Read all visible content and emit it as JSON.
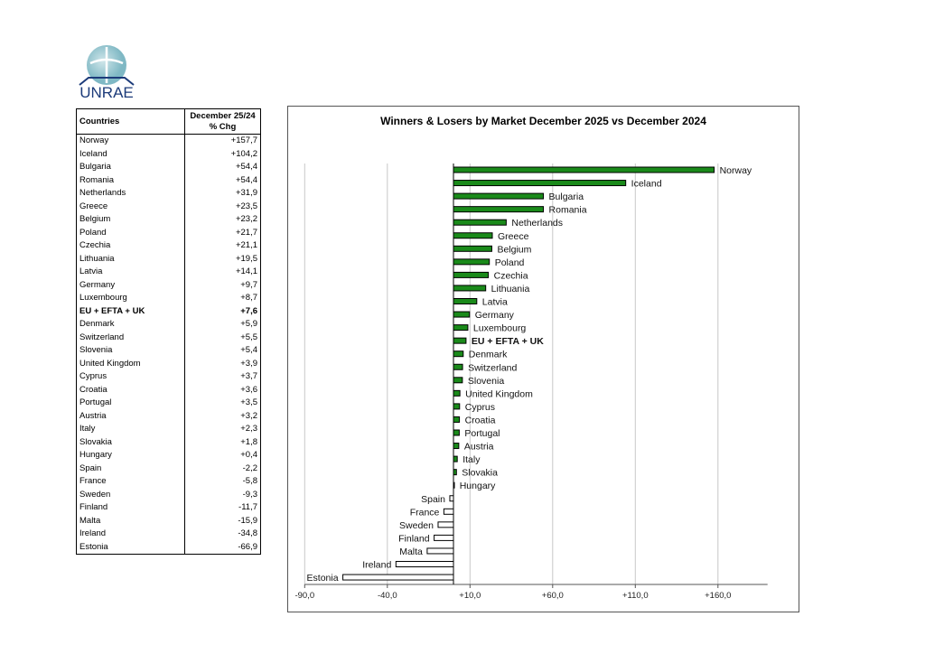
{
  "logo": {
    "text": "UNRAE"
  },
  "table": {
    "col1_header": "Countries",
    "col2_header_line1": "December 25/24",
    "col2_header_line2": "% Chg",
    "rows": [
      {
        "country": "Norway",
        "chg": "+157,7"
      },
      {
        "country": "Iceland",
        "chg": "+104,2"
      },
      {
        "country": "Bulgaria",
        "chg": "+54,4"
      },
      {
        "country": "Romania",
        "chg": "+54,4"
      },
      {
        "country": "Netherlands",
        "chg": "+31,9"
      },
      {
        "country": "Greece",
        "chg": "+23,5"
      },
      {
        "country": "Belgium",
        "chg": "+23,2"
      },
      {
        "country": "Poland",
        "chg": "+21,7"
      },
      {
        "country": "Czechia",
        "chg": "+21,1"
      },
      {
        "country": "Lithuania",
        "chg": "+19,5"
      },
      {
        "country": "Latvia",
        "chg": "+14,1"
      },
      {
        "country": "Germany",
        "chg": "+9,7"
      },
      {
        "country": "Luxembourg",
        "chg": "+8,7"
      },
      {
        "country": "EU + EFTA + UK",
        "chg": "+7,6",
        "bold": true
      },
      {
        "country": "Denmark",
        "chg": "+5,9"
      },
      {
        "country": "Switzerland",
        "chg": "+5,5"
      },
      {
        "country": "Slovenia",
        "chg": "+5,4"
      },
      {
        "country": "United Kingdom",
        "chg": "+3,9"
      },
      {
        "country": "Cyprus",
        "chg": "+3,7"
      },
      {
        "country": "Croatia",
        "chg": "+3,6"
      },
      {
        "country": "Portugal",
        "chg": "+3,5"
      },
      {
        "country": "Austria",
        "chg": "+3,2"
      },
      {
        "country": "Italy",
        "chg": "+2,3"
      },
      {
        "country": "Slovakia",
        "chg": "+1,8"
      },
      {
        "country": "Hungary",
        "chg": "+0,4"
      },
      {
        "country": "Spain",
        "chg": "-2,2"
      },
      {
        "country": "France",
        "chg": "-5,8"
      },
      {
        "country": "Sweden",
        "chg": "-9,3"
      },
      {
        "country": "Finland",
        "chg": "-11,7"
      },
      {
        "country": "Malta",
        "chg": "-15,9"
      },
      {
        "country": "Ireland",
        "chg": "-34,8"
      },
      {
        "country": "Estonia",
        "chg": "-66,9"
      }
    ]
  },
  "chart_data": {
    "type": "bar",
    "orientation": "horizontal",
    "title": "Winners & Losers by Market December 2025 vs December 2024",
    "categories": [
      "Norway",
      "Iceland",
      "Bulgaria",
      "Romania",
      "Netherlands",
      "Greece",
      "Belgium",
      "Poland",
      "Czechia",
      "Lithuania",
      "Latvia",
      "Germany",
      "Luxembourg",
      "EU + EFTA + UK",
      "Denmark",
      "Switzerland",
      "Slovenia",
      "United Kingdom",
      "Cyprus",
      "Croatia",
      "Portugal",
      "Austria",
      "Italy",
      "Slovakia",
      "Hungary",
      "Spain",
      "France",
      "Sweden",
      "Finland",
      "Malta",
      "Ireland",
      "Estonia"
    ],
    "values": [
      157.7,
      104.2,
      54.4,
      54.4,
      31.9,
      23.5,
      23.2,
      21.7,
      21.1,
      19.5,
      14.1,
      9.7,
      8.7,
      7.6,
      5.9,
      5.5,
      5.4,
      3.9,
      3.7,
      3.6,
      3.5,
      3.2,
      2.3,
      1.8,
      0.4,
      -2.2,
      -5.8,
      -9.3,
      -11.7,
      -15.9,
      -34.8,
      -66.9
    ],
    "bold_categories": [
      "EU + EFTA + UK"
    ],
    "xticks": [
      -90,
      -40,
      10,
      60,
      110,
      160
    ],
    "xtick_labels": [
      "-90,0",
      "-40,0",
      "+10,0",
      "+60,0",
      "+110,0",
      "+160,0"
    ],
    "xlim": [
      -90,
      190
    ],
    "grid": true,
    "colors": {
      "positive": "#1a8a1a",
      "negative": "#ffffff",
      "outline": "#000000",
      "grid": "#c8c8c8"
    }
  }
}
